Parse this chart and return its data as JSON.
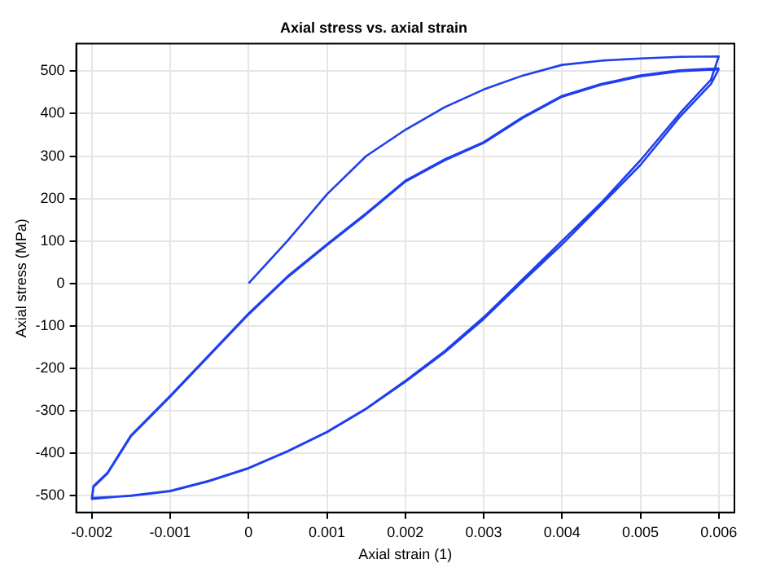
{
  "chart_data": {
    "type": "line",
    "title": "Axial stress vs. axial strain",
    "xlabel": "Axial strain (1)",
    "ylabel": "Axial stress (MPa)",
    "xlim": [
      -0.0022,
      0.0062
    ],
    "xticks": [
      -0.002,
      -0.001,
      0,
      0.001,
      0.002,
      0.003,
      0.004,
      0.005,
      0.006
    ],
    "ylim": [
      -540,
      565
    ],
    "yticks": [
      -500,
      -400,
      -300,
      -200,
      -100,
      0,
      100,
      200,
      300,
      400,
      500
    ],
    "grid": true,
    "legend": false,
    "marker": "none",
    "line_style": "solid",
    "series": [
      {
        "color": "#1f3fef",
        "x": [
          0,
          0.0005,
          0.001,
          0.0015,
          0.002,
          0.0025,
          0.003,
          0.0035,
          0.004,
          0.0045,
          0.005,
          0.0055,
          0.006,
          0.0059,
          0.0055,
          0.005,
          0.0045,
          0.004,
          0.0035,
          0.003,
          0.0025,
          0.002,
          0.0015,
          0.001,
          0.0005,
          0,
          -0.0005,
          -0.001,
          -0.0015,
          -0.002,
          -0.00198,
          -0.0018,
          -0.0015,
          -0.001,
          -0.0005,
          0,
          0.0005,
          0.001,
          0.0015,
          0.002,
          0.0025,
          0.003,
          0.0035,
          0.004,
          0.0045,
          0.005,
          0.0055,
          0.006,
          0.0059,
          0.0055,
          0.005,
          0.0045,
          0.004,
          0.0035,
          0.003,
          0.0025,
          0.002,
          0.0015,
          0.001,
          0.0005,
          0,
          -0.0005,
          -0.001,
          -0.0015,
          -0.002,
          -0.00198,
          -0.0018,
          -0.0015,
          -0.001,
          -0.0005,
          0,
          0.0005,
          0.001,
          0.0015,
          0.002,
          0.0025,
          0.003,
          0.0035,
          0.004,
          0.0045,
          0.005,
          0.0055,
          0.006
        ],
        "values": [
          0,
          101,
          210,
          300,
          362,
          415,
          457,
          490,
          515,
          525,
          530,
          534,
          535,
          480,
          400,
          290,
          190,
          100,
          10,
          -80,
          -160,
          -230,
          -295,
          -350,
          -395,
          -435,
          -465,
          -489,
          -500,
          -508,
          -480,
          -448,
          -360,
          -267,
          -170,
          -73,
          15,
          90,
          163,
          240,
          290,
          331,
          390,
          440,
          468,
          488,
          500,
          505,
          470,
          392,
          279,
          185,
          92,
          5,
          -84,
          -163,
          -232,
          -296,
          -351,
          -396,
          -436,
          -466,
          -490,
          -501,
          -506,
          -478,
          -446,
          -358,
          -265,
          -168,
          -71,
          17,
          92,
          165,
          242,
          292,
          333,
          392,
          442,
          470,
          490,
          502,
          507
        ]
      }
    ]
  }
}
